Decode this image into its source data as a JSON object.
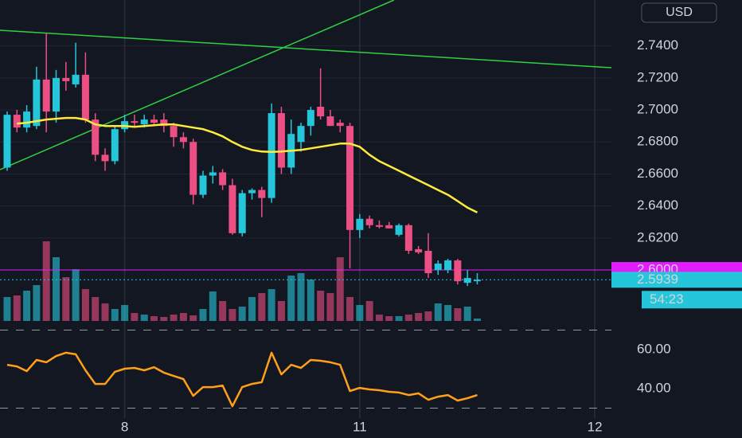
{
  "chart_data": {
    "type": "candlestick",
    "currency": "USD",
    "up_color": "#26c6da",
    "down_color": "#ec4f83",
    "xlim": [
      -0.73,
      61.7
    ],
    "xticks": [
      {
        "value": 12,
        "label": "8"
      },
      {
        "value": 36,
        "label": "11"
      },
      {
        "value": 60,
        "label": "12"
      }
    ],
    "ylim": [
      2.5637,
      2.7687
    ],
    "yticks": [
      {
        "value": 2.62,
        "label": "2.6200"
      },
      {
        "value": 2.64,
        "label": "2.6400"
      },
      {
        "value": 2.66,
        "label": "2.6600"
      },
      {
        "value": 2.68,
        "label": "2.6800"
      },
      {
        "value": 2.7,
        "label": "2.7000"
      },
      {
        "value": 2.72,
        "label": "2.7200"
      },
      {
        "value": 2.74,
        "label": "2.7400"
      }
    ],
    "grid": true,
    "open": [
      2.664,
      2.697,
      2.689,
      2.69,
      2.719,
      2.699,
      2.72,
      2.716,
      2.722,
      2.694,
      2.672,
      2.668,
      2.688,
      2.693,
      2.691,
      2.694,
      2.694,
      2.69,
      2.683,
      2.68,
      2.647,
      2.659,
      2.661,
      2.653,
      2.623,
      2.648,
      2.65,
      2.645,
      2.698,
      2.664,
      2.68,
      2.69,
      2.702,
      2.696,
      2.692,
      2.69,
      2.625,
      2.632,
      2.628,
      2.628,
      2.622,
      2.628,
      2.613,
      2.612,
      2.6,
      2.6,
      2.606,
      2.592,
      2.593
    ],
    "high": [
      2.699,
      2.7,
      2.703,
      2.727,
      2.748,
      2.725,
      2.73,
      2.742,
      2.736,
      2.698,
      2.676,
      2.69,
      2.697,
      2.697,
      2.697,
      2.697,
      2.698,
      2.692,
      2.686,
      2.682,
      2.662,
      2.665,
      2.663,
      2.657,
      2.65,
      2.651,
      2.652,
      2.704,
      2.702,
      2.694,
      2.692,
      2.702,
      2.726,
      2.7,
      2.694,
      2.692,
      2.635,
      2.634,
      2.631,
      2.63,
      2.629,
      2.629,
      2.615,
      2.623,
      2.606,
      2.607,
      2.607,
      2.6,
      2.598
    ],
    "low": [
      2.662,
      2.686,
      2.686,
      2.688,
      2.686,
      2.692,
      2.712,
      2.714,
      2.692,
      2.668,
      2.662,
      2.666,
      2.686,
      2.69,
      2.689,
      2.69,
      2.686,
      2.677,
      2.676,
      2.641,
      2.645,
      2.654,
      2.65,
      2.622,
      2.621,
      2.644,
      2.633,
      2.642,
      2.66,
      2.66,
      2.674,
      2.684,
      2.694,
      2.69,
      2.686,
      2.601,
      2.62,
      2.626,
      2.626,
      2.626,
      2.621,
      2.61,
      2.61,
      2.595,
      2.597,
      2.598,
      2.591,
      2.59,
      2.591
    ],
    "close": [
      2.697,
      2.689,
      2.699,
      2.719,
      2.699,
      2.72,
      2.718,
      2.722,
      2.694,
      2.672,
      2.668,
      2.688,
      2.693,
      2.692,
      2.694,
      2.692,
      2.69,
      2.683,
      2.68,
      2.647,
      2.659,
      2.661,
      2.653,
      2.623,
      2.648,
      2.65,
      2.645,
      2.698,
      2.664,
      2.685,
      2.69,
      2.7,
      2.696,
      2.69,
      2.69,
      2.625,
      2.632,
      2.628,
      2.627,
      2.626,
      2.628,
      2.612,
      2.611,
      2.598,
      2.604,
      2.606,
      2.593,
      2.595,
      2.5939
    ],
    "volume": [
      30,
      32,
      38,
      45,
      100,
      80,
      55,
      65,
      40,
      30,
      22,
      15,
      20,
      10,
      8,
      6,
      5,
      8,
      10,
      7,
      15,
      37,
      25,
      15,
      18,
      30,
      35,
      40,
      25,
      57,
      60,
      52,
      38,
      35,
      80,
      30,
      20,
      25,
      8,
      6,
      6,
      8,
      10,
      12,
      22,
      20,
      16,
      18,
      3
    ],
    "vlim": [
      0,
      100
    ],
    "ma": {
      "color": "#ffeb3b",
      "values": [
        null,
        2.6915,
        2.692,
        2.693,
        2.694,
        2.6945,
        2.695,
        2.695,
        2.694,
        2.691,
        2.69,
        2.69,
        2.69,
        2.6895,
        2.69,
        2.6905,
        2.691,
        2.691,
        2.69,
        2.689,
        2.688,
        2.686,
        2.6835,
        2.68,
        2.677,
        2.675,
        2.674,
        2.6738,
        2.674,
        2.6745,
        2.675,
        2.676,
        2.677,
        2.678,
        2.679,
        2.679,
        2.677,
        2.672,
        2.668,
        2.665,
        2.662,
        2.659,
        2.656,
        2.653,
        2.65,
        2.647,
        2.643,
        2.639,
        2.636
      ]
    },
    "trend_lines": [
      {
        "color": "#2fd13f",
        "points": [
          [
            -0.73,
            2.7498
          ],
          [
            61.7,
            2.7264
          ]
        ]
      },
      {
        "color": "#2fd13f",
        "points": [
          [
            -0.73,
            2.6627
          ],
          [
            39.5,
            2.7687
          ]
        ]
      }
    ],
    "hline": {
      "value": 2.6,
      "label": "2.6000",
      "color": "#e31cff"
    },
    "last_label": "2.5939",
    "countdown": "54:23",
    "rsi": {
      "color": "#ff9f1a",
      "values": [
        52.2,
        51.4,
        49,
        54.7,
        53.5,
        56.7,
        58.4,
        57.6,
        49.4,
        42.4,
        42.4,
        48.6,
        50.2,
        50.6,
        49.4,
        51,
        48.2,
        46.5,
        44.9,
        36.3,
        40.8,
        40.8,
        41.6,
        31,
        40.8,
        42.4,
        43.3,
        58.4,
        47.3,
        52.2,
        50.6,
        54.7,
        54.3,
        53.5,
        52.2,
        38.8,
        40.4,
        39.6,
        39.2,
        38.4,
        38,
        36.7,
        37.6,
        34.3,
        35.9,
        36.7,
        33.9,
        35.1,
        36.7
      ],
      "ylim": [
        23.7,
        70.6
      ],
      "yticks": [
        {
          "value": 60,
          "label": "60.00"
        },
        {
          "value": 40,
          "label": "40.00"
        }
      ],
      "levels": [
        70,
        30
      ]
    }
  }
}
